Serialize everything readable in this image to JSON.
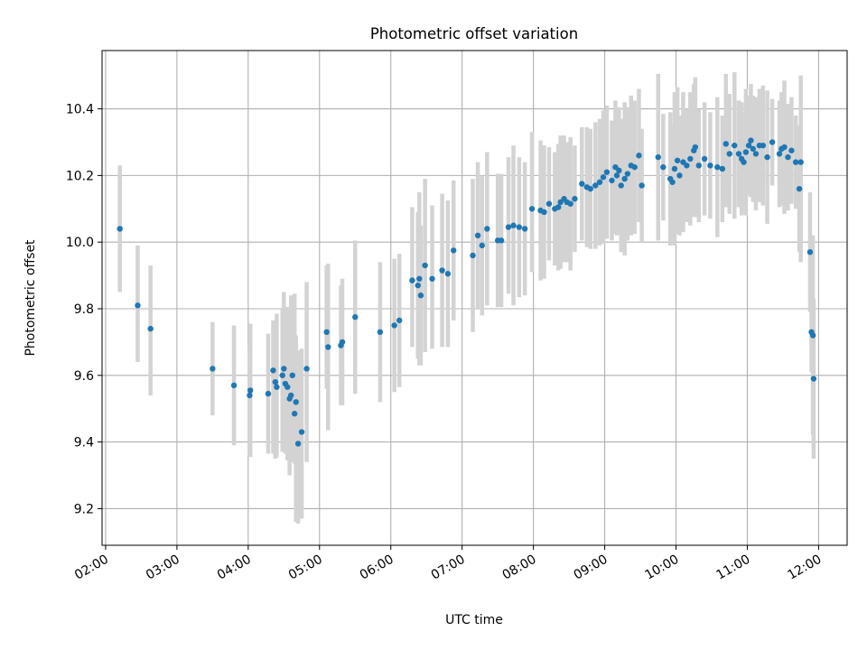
{
  "chart_data": {
    "type": "scatter",
    "title": "Photometric offset variation",
    "xlabel": "UTC time",
    "ylabel": "Photometric offset",
    "x_unit": "hours UTC",
    "xlim": [
      1.95,
      12.4
    ],
    "ylim": [
      9.09,
      10.575
    ],
    "grid": true,
    "x_tick_labels": [
      "02:00",
      "03:00",
      "04:00",
      "05:00",
      "06:00",
      "07:00",
      "08:00",
      "09:00",
      "10:00",
      "11:00",
      "12:00"
    ],
    "y_tick_labels": [
      "9.2",
      "9.4",
      "9.6",
      "9.8",
      "10.0",
      "10.2",
      "10.4"
    ],
    "colors": {
      "points": "#1f77b4",
      "errorbars": "#d3d3d3",
      "grid": "#b0b0b0"
    },
    "series": [
      {
        "x": [
          2.2,
          2.45,
          2.63,
          3.5,
          3.8,
          4.02,
          4.03,
          4.28,
          4.35,
          4.38,
          4.4,
          4.48,
          4.5,
          4.52,
          4.55,
          4.58,
          4.6,
          4.62,
          4.65,
          4.67,
          4.7,
          4.75,
          4.82,
          5.1,
          5.12,
          5.3,
          5.32,
          5.5,
          5.85,
          6.05,
          6.12,
          6.3,
          6.38,
          6.4,
          6.42,
          6.48,
          6.58,
          6.72,
          6.8,
          6.88,
          7.15,
          7.22,
          7.28,
          7.35,
          7.5,
          7.55,
          7.65,
          7.72,
          7.8,
          7.88,
          7.98,
          8.1,
          8.15,
          8.22,
          8.3,
          8.35,
          8.38,
          8.43,
          8.47,
          8.52,
          8.58,
          8.68,
          8.75,
          8.8,
          8.87,
          8.93,
          8.98,
          9.03,
          9.1,
          9.15,
          9.17,
          9.2,
          9.23,
          9.28,
          9.32,
          9.37,
          9.42,
          9.48,
          9.52,
          9.75,
          9.82,
          9.92,
          9.95,
          9.98,
          10.02,
          10.05,
          10.1,
          10.15,
          10.2,
          10.25,
          10.27,
          10.32,
          10.4,
          10.48,
          10.58,
          10.65,
          10.7,
          10.75,
          10.82,
          10.88,
          10.92,
          10.95,
          10.98,
          11.02,
          11.05,
          11.08,
          11.12,
          11.17,
          11.22,
          11.28,
          11.35,
          11.45,
          11.48,
          11.52,
          11.57,
          11.62,
          11.68,
          11.73,
          11.75,
          11.88,
          11.9,
          11.92,
          11.93
        ],
        "y": [
          10.04,
          9.81,
          9.74,
          9.62,
          9.57,
          9.54,
          9.555,
          9.545,
          9.615,
          9.58,
          9.565,
          9.6,
          9.62,
          9.575,
          9.565,
          9.53,
          9.54,
          9.6,
          9.485,
          9.52,
          9.395,
          9.43,
          9.62,
          9.73,
          9.685,
          9.69,
          9.7,
          9.775,
          9.73,
          9.75,
          9.765,
          9.885,
          9.87,
          9.89,
          9.84,
          9.93,
          9.89,
          9.915,
          9.905,
          9.975,
          9.96,
          10.02,
          9.99,
          10.04,
          10.005,
          10.005,
          10.045,
          10.05,
          10.045,
          10.04,
          10.1,
          10.095,
          10.09,
          10.115,
          10.1,
          10.105,
          10.12,
          10.13,
          10.12,
          10.115,
          10.13,
          10.175,
          10.165,
          10.16,
          10.17,
          10.18,
          10.195,
          10.21,
          10.185,
          10.225,
          10.2,
          10.215,
          10.17,
          10.19,
          10.205,
          10.23,
          10.225,
          10.26,
          10.17,
          10.255,
          10.225,
          10.19,
          10.18,
          10.22,
          10.245,
          10.2,
          10.24,
          10.23,
          10.25,
          10.275,
          10.285,
          10.23,
          10.25,
          10.23,
          10.225,
          10.22,
          10.295,
          10.265,
          10.29,
          10.265,
          10.25,
          10.24,
          10.27,
          10.29,
          10.305,
          10.28,
          10.265,
          10.29,
          10.29,
          10.255,
          10.3,
          10.265,
          10.28,
          10.285,
          10.255,
          10.275,
          10.24,
          10.16,
          10.24,
          9.97,
          9.73,
          9.72,
          9.59
        ],
        "yerr_low": [
          0.19,
          0.17,
          0.2,
          0.14,
          0.18,
          0.18,
          0.2,
          0.18,
          0.25,
          0.23,
          0.21,
          0.23,
          0.22,
          0.21,
          0.22,
          0.23,
          0.2,
          0.22,
          0.15,
          0.36,
          0.24,
          0.26,
          0.28,
          0.17,
          0.25,
          0.18,
          0.19,
          0.23,
          0.21,
          0.2,
          0.2,
          0.2,
          0.22,
          0.26,
          0.21,
          0.26,
          0.21,
          0.23,
          0.22,
          0.21,
          0.23,
          0.22,
          0.21,
          0.23,
          0.2,
          0.2,
          0.2,
          0.24,
          0.21,
          0.2,
          0.19,
          0.21,
          0.2,
          0.17,
          0.17,
          0.19,
          0.2,
          0.19,
          0.18,
          0.2,
          0.16,
          0.17,
          0.18,
          0.18,
          0.19,
          0.19,
          0.2,
          0.2,
          0.18,
          0.2,
          0.18,
          0.19,
          0.2,
          0.23,
          0.2,
          0.21,
          0.2,
          0.2,
          0.17,
          0.25,
          0.16,
          0.2,
          0.17,
          0.23,
          0.22,
          0.18,
          0.21,
          0.17,
          0.2,
          0.2,
          0.21,
          0.17,
          0.17,
          0.16,
          0.21,
          0.16,
          0.19,
          0.18,
          0.22,
          0.16,
          0.17,
          0.15,
          0.19,
          0.15,
          0.17,
          0.16,
          0.17,
          0.17,
          0.18,
          0.2,
          0.13,
          0.16,
          0.17,
          0.2,
          0.16,
          0.16,
          0.14,
          0.19,
          0.3,
          0.18,
          0.12,
          0.3,
          0.24
        ],
        "yerr_high": [
          0.19,
          0.18,
          0.19,
          0.14,
          0.18,
          0.15,
          0.2,
          0.18,
          0.15,
          0.16,
          0.22,
          0.2,
          0.23,
          0.22,
          0.24,
          0.27,
          0.3,
          0.23,
          0.36,
          0.2,
          0.28,
          0.25,
          0.26,
          0.2,
          0.25,
          0.18,
          0.19,
          0.23,
          0.21,
          0.2,
          0.2,
          0.22,
          0.22,
          0.26,
          0.21,
          0.26,
          0.22,
          0.23,
          0.22,
          0.21,
          0.23,
          0.22,
          0.21,
          0.23,
          0.2,
          0.2,
          0.21,
          0.24,
          0.21,
          0.2,
          0.23,
          0.21,
          0.2,
          0.17,
          0.17,
          0.19,
          0.2,
          0.19,
          0.18,
          0.2,
          0.16,
          0.17,
          0.18,
          0.18,
          0.19,
          0.19,
          0.2,
          0.2,
          0.18,
          0.2,
          0.18,
          0.19,
          0.2,
          0.23,
          0.2,
          0.21,
          0.2,
          0.2,
          0.17,
          0.25,
          0.16,
          0.2,
          0.17,
          0.23,
          0.22,
          0.18,
          0.21,
          0.17,
          0.2,
          0.2,
          0.21,
          0.17,
          0.17,
          0.16,
          0.21,
          0.16,
          0.21,
          0.18,
          0.22,
          0.16,
          0.17,
          0.15,
          0.19,
          0.15,
          0.17,
          0.16,
          0.17,
          0.17,
          0.18,
          0.2,
          0.13,
          0.16,
          0.17,
          0.2,
          0.16,
          0.16,
          0.14,
          0.19,
          0.26,
          0.18,
          0.12,
          0.3,
          0.24
        ]
      }
    ]
  }
}
